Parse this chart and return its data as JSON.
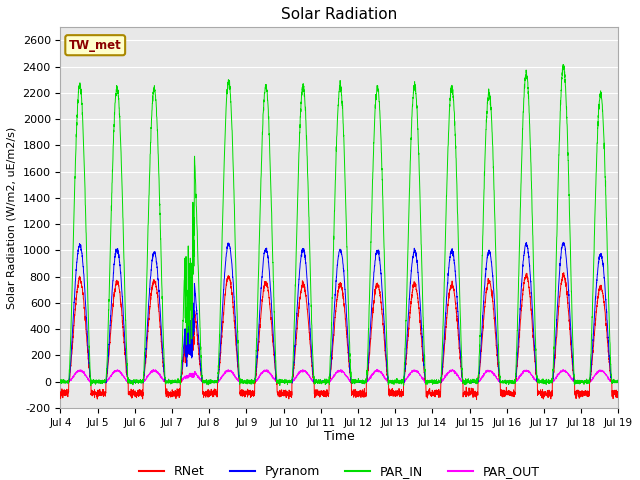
{
  "title": "Solar Radiation",
  "ylabel": "Solar Radiation (W/m2, uE/m2/s)",
  "xlabel": "Time",
  "ylim": [
    -200,
    2700
  ],
  "yticks": [
    -200,
    0,
    200,
    400,
    600,
    800,
    1000,
    1200,
    1400,
    1600,
    1800,
    2000,
    2200,
    2400,
    2600
  ],
  "start_day": 4,
  "end_day": 19,
  "annotation_text": "TW_met",
  "annotation_bg": "#ffffcc",
  "annotation_border": "#aa8800",
  "fig_bg": "#ffffff",
  "plot_bg": "#e8e8e8",
  "colors": {
    "RNet": "#ff0000",
    "Pyranom": "#0000ff",
    "PAR_IN": "#00dd00",
    "PAR_OUT": "#ff00ff"
  },
  "legend_labels": [
    "RNet",
    "Pyranom",
    "PAR_IN",
    "PAR_OUT"
  ],
  "n_days": 15,
  "points_per_day": 288
}
